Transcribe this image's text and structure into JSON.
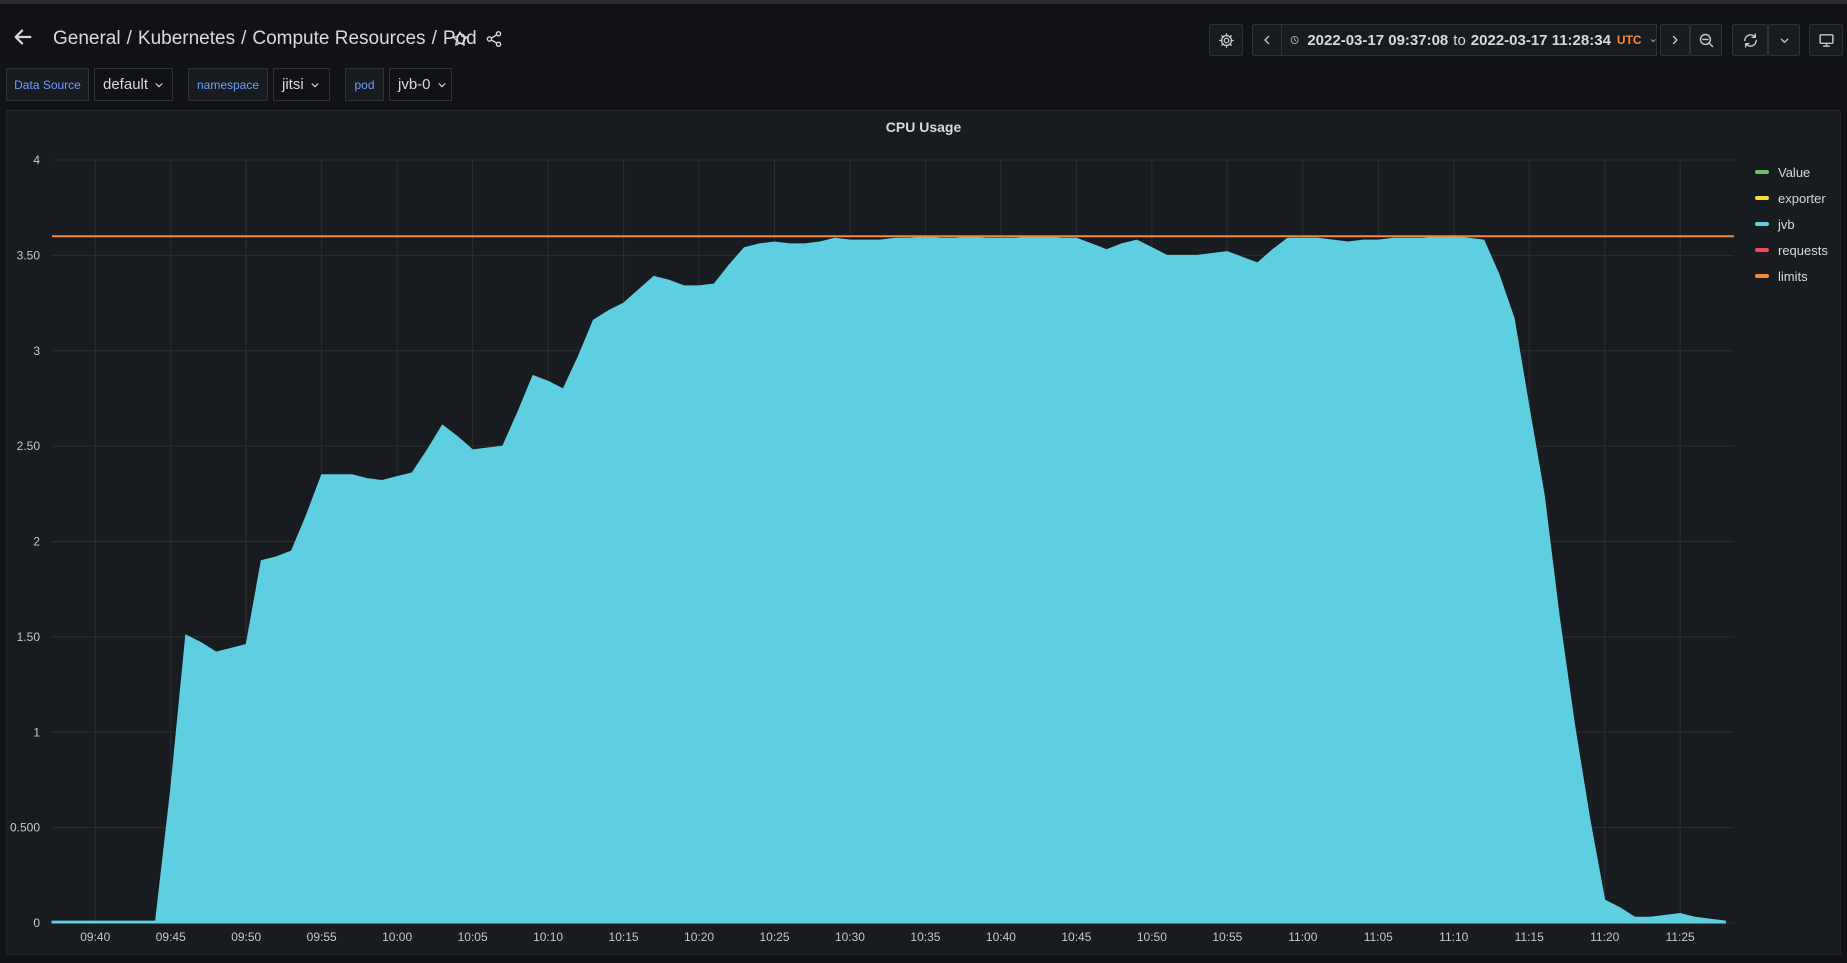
{
  "breadcrumb": {
    "folder": "General",
    "path": [
      "Kubernetes",
      "Compute Resources",
      "Pod"
    ]
  },
  "time_picker": {
    "from": "2022-03-17 09:37:08",
    "to_word": "to",
    "to": "2022-03-17 11:28:34",
    "timezone": "UTC"
  },
  "variables": [
    {
      "label": "Data Source",
      "value": "default"
    },
    {
      "label": "namespace",
      "value": "jitsi"
    },
    {
      "label": "pod",
      "value": "jvb-0"
    }
  ],
  "icons": [
    "arrow-left-icon",
    "star-icon",
    "share-icon",
    "gear-icon",
    "chevron-left-icon",
    "clock-icon",
    "chevron-down-icon",
    "chevron-right-icon",
    "zoom-out-icon",
    "refresh-icon",
    "monitor-icon"
  ],
  "colors": {
    "jvb": "#5ecfe0",
    "limits": "#f2893b",
    "value": "#73bf69",
    "exporter": "#fade2a",
    "requests": "#f2495c"
  },
  "panel": {
    "title": "CPU Usage"
  },
  "chart_data": {
    "type": "area",
    "title": "CPU Usage",
    "y_ticks": [
      "0",
      "0.500",
      "1",
      "1.50",
      "2",
      "2.50",
      "3",
      "3.50",
      "4"
    ],
    "ylim": [
      0,
      4
    ],
    "x_ticks": [
      "09:40",
      "09:45",
      "09:50",
      "09:55",
      "10:00",
      "10:05",
      "10:10",
      "10:15",
      "10:20",
      "10:25",
      "10:30",
      "10:35",
      "10:40",
      "10:45",
      "10:50",
      "10:55",
      "11:00",
      "11:05",
      "11:10",
      "11:15",
      "11:20",
      "11:25"
    ],
    "x_range": [
      "09:37:08",
      "11:28:34"
    ],
    "grid": true,
    "legend_position": "right",
    "legend": [
      "Value",
      "exporter",
      "jvb",
      "requests",
      "limits"
    ],
    "series": [
      {
        "name": "jvb",
        "x": [
          "09:37:08",
          "09:39",
          "09:41",
          "09:44",
          "09:45",
          "09:46",
          "09:47",
          "09:48",
          "09:49",
          "09:50",
          "09:51",
          "09:52",
          "09:53",
          "09:54",
          "09:55",
          "09:56",
          "09:57",
          "09:58",
          "09:59",
          "10:00",
          "10:01",
          "10:02",
          "10:03",
          "10:04",
          "10:05",
          "10:06",
          "10:07",
          "10:08",
          "10:09",
          "10:10",
          "10:11",
          "10:12",
          "10:13",
          "10:14",
          "10:15",
          "10:16",
          "10:17",
          "10:18",
          "10:19",
          "10:20",
          "10:21",
          "10:22",
          "10:23",
          "10:24",
          "10:25",
          "10:26",
          "10:27",
          "10:28",
          "10:29",
          "10:30",
          "10:31",
          "10:32",
          "10:33",
          "10:34",
          "10:35",
          "10:36",
          "10:37",
          "10:38",
          "10:39",
          "10:40",
          "10:41",
          "10:42",
          "10:43",
          "10:44",
          "10:45",
          "10:46",
          "10:47",
          "10:48",
          "10:49",
          "10:50",
          "10:51",
          "10:52",
          "10:53",
          "10:54",
          "10:55",
          "10:56",
          "10:57",
          "10:58",
          "10:59",
          "11:00",
          "11:01",
          "11:02",
          "11:03",
          "11:04",
          "11:05",
          "11:06",
          "11:07",
          "11:08",
          "11:09",
          "11:10",
          "11:11",
          "11:12",
          "11:13",
          "11:14",
          "11:15",
          "11:16",
          "11:17",
          "11:18",
          "11:19",
          "11:20",
          "11:21",
          "11:22",
          "11:23",
          "11:24",
          "11:25",
          "11:26",
          "11:27",
          "11:28"
        ],
        "values": [
          0.01,
          0.01,
          0.01,
          0.01,
          0.7,
          1.51,
          1.47,
          1.42,
          1.44,
          1.46,
          1.9,
          1.92,
          1.95,
          2.14,
          2.35,
          2.35,
          2.35,
          2.33,
          2.32,
          2.34,
          2.36,
          2.48,
          2.61,
          2.55,
          2.48,
          2.49,
          2.5,
          2.68,
          2.87,
          2.84,
          2.8,
          2.97,
          3.16,
          3.21,
          3.25,
          3.32,
          3.39,
          3.37,
          3.34,
          3.34,
          3.35,
          3.45,
          3.54,
          3.56,
          3.57,
          3.56,
          3.56,
          3.57,
          3.59,
          3.58,
          3.58,
          3.58,
          3.59,
          3.59,
          3.6,
          3.59,
          3.59,
          3.6,
          3.59,
          3.59,
          3.59,
          3.6,
          3.6,
          3.59,
          3.59,
          3.56,
          3.53,
          3.56,
          3.58,
          3.54,
          3.5,
          3.5,
          3.5,
          3.51,
          3.52,
          3.49,
          3.46,
          3.53,
          3.59,
          3.59,
          3.59,
          3.58,
          3.57,
          3.58,
          3.58,
          3.59,
          3.59,
          3.59,
          3.6,
          3.6,
          3.59,
          3.58,
          3.4,
          3.17,
          2.7,
          2.24,
          1.6,
          1.04,
          0.55,
          0.12,
          0.08,
          0.03,
          0.03,
          0.04,
          0.05,
          0.03,
          0.02,
          0.01
        ]
      },
      {
        "name": "limits",
        "x": [
          "09:37:08",
          "11:28:34"
        ],
        "values": [
          3.6,
          3.6
        ]
      }
    ]
  }
}
